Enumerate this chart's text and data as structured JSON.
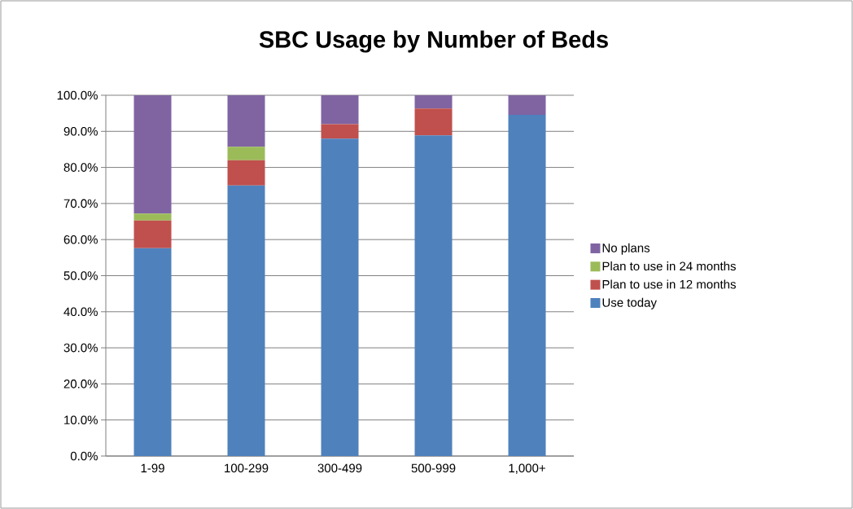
{
  "chart_data": {
    "type": "bar",
    "title": "SBC Usage by Number of Beds",
    "stacked": true,
    "categories": [
      "1-99",
      "100-299",
      "300-499",
      "500-999",
      "1,000+"
    ],
    "series": [
      {
        "name": "Use today",
        "color": "#4f81bd",
        "values": [
          57.6,
          75.0,
          88.0,
          88.9,
          94.6
        ]
      },
      {
        "name": "Plan to use in 12 months",
        "color": "#c0504d",
        "values": [
          7.7,
          7.0,
          4.0,
          7.4,
          0
        ]
      },
      {
        "name": "Plan to use in 24 months",
        "color": "#9bbb59",
        "values": [
          1.9,
          3.7,
          0,
          0,
          0
        ]
      },
      {
        "name": "No plans",
        "color": "#8064a2",
        "values": [
          32.8,
          14.3,
          8.0,
          3.7,
          5.4
        ]
      }
    ],
    "ylim": [
      0,
      100
    ],
    "yticks": [
      {
        "value": 0,
        "label": "0.0%"
      },
      {
        "value": 10,
        "label": "10.0%"
      },
      {
        "value": 20,
        "label": "20.0%"
      },
      {
        "value": 30,
        "label": "30.0%"
      },
      {
        "value": 40,
        "label": "40.0%"
      },
      {
        "value": 50,
        "label": "50.0%"
      },
      {
        "value": 60,
        "label": "60.0%"
      },
      {
        "value": 70,
        "label": "70.0%"
      },
      {
        "value": 80,
        "label": "80.0%"
      },
      {
        "value": 90,
        "label": "90.0%"
      },
      {
        "value": 100,
        "label": "100.0%"
      }
    ],
    "grid": "y",
    "legend": "right"
  }
}
